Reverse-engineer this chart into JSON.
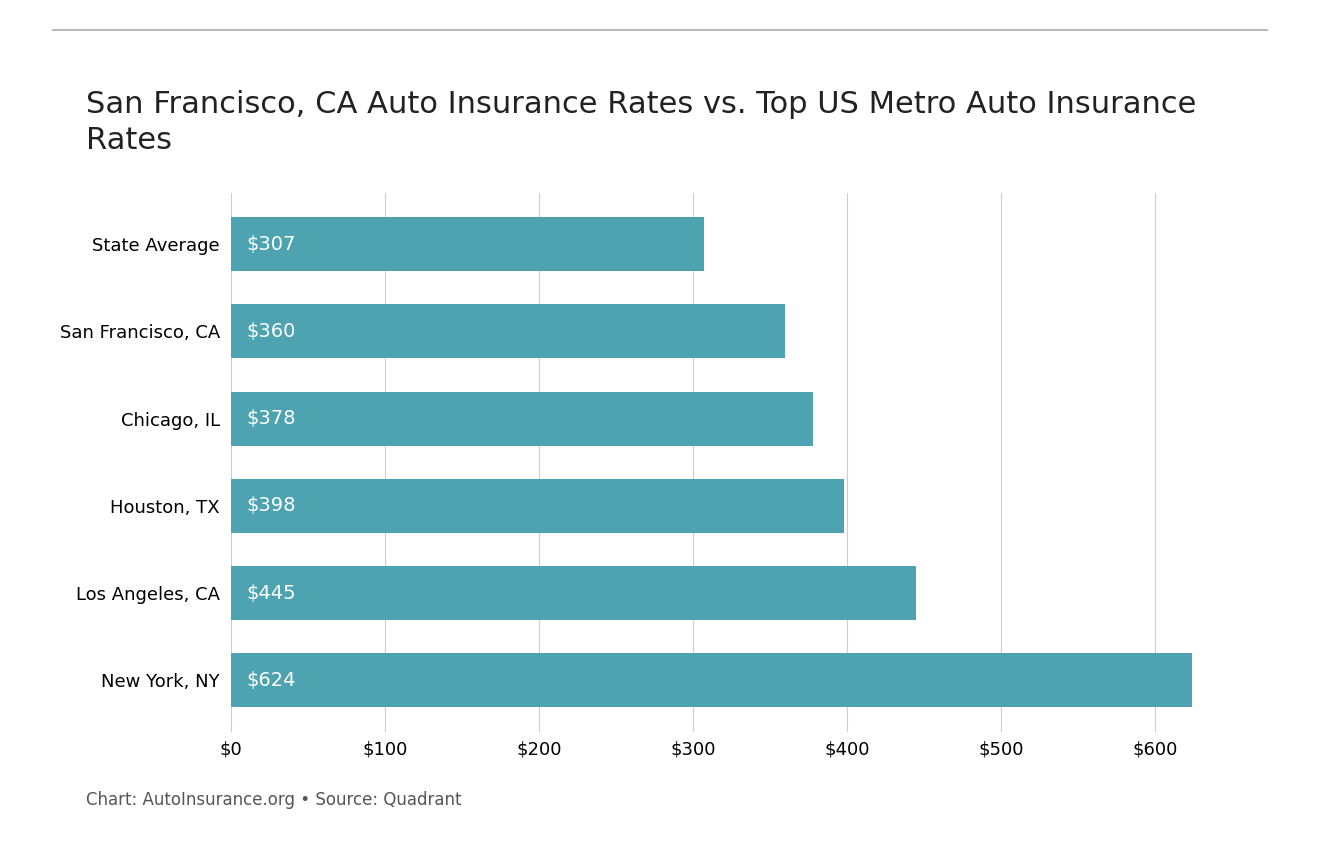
{
  "title": "San Francisco, CA Auto Insurance Rates vs. Top US Metro Auto Insurance\nRates",
  "categories": [
    "State Average",
    "San Francisco, CA",
    "Chicago, IL",
    "Houston, TX",
    "Los Angeles, CA",
    "New York, NY"
  ],
  "values": [
    307,
    360,
    378,
    398,
    445,
    624
  ],
  "bar_color": "#4DA3B0",
  "label_color": "#ffffff",
  "label_prefix": "$",
  "xlim": [
    0,
    660
  ],
  "xtick_values": [
    0,
    100,
    200,
    300,
    400,
    500,
    600
  ],
  "xtick_labels": [
    "$0",
    "$100",
    "$200",
    "$300",
    "$400",
    "$500",
    "$600"
  ],
  "title_fontsize": 22,
  "tick_fontsize": 13,
  "label_fontsize": 14,
  "caption": "Chart: AutoInsurance.org • Source: Quadrant",
  "caption_fontsize": 12,
  "background_color": "#ffffff",
  "bar_height": 0.62,
  "grid_color": "#cccccc",
  "title_color": "#222222",
  "caption_color": "#555555"
}
